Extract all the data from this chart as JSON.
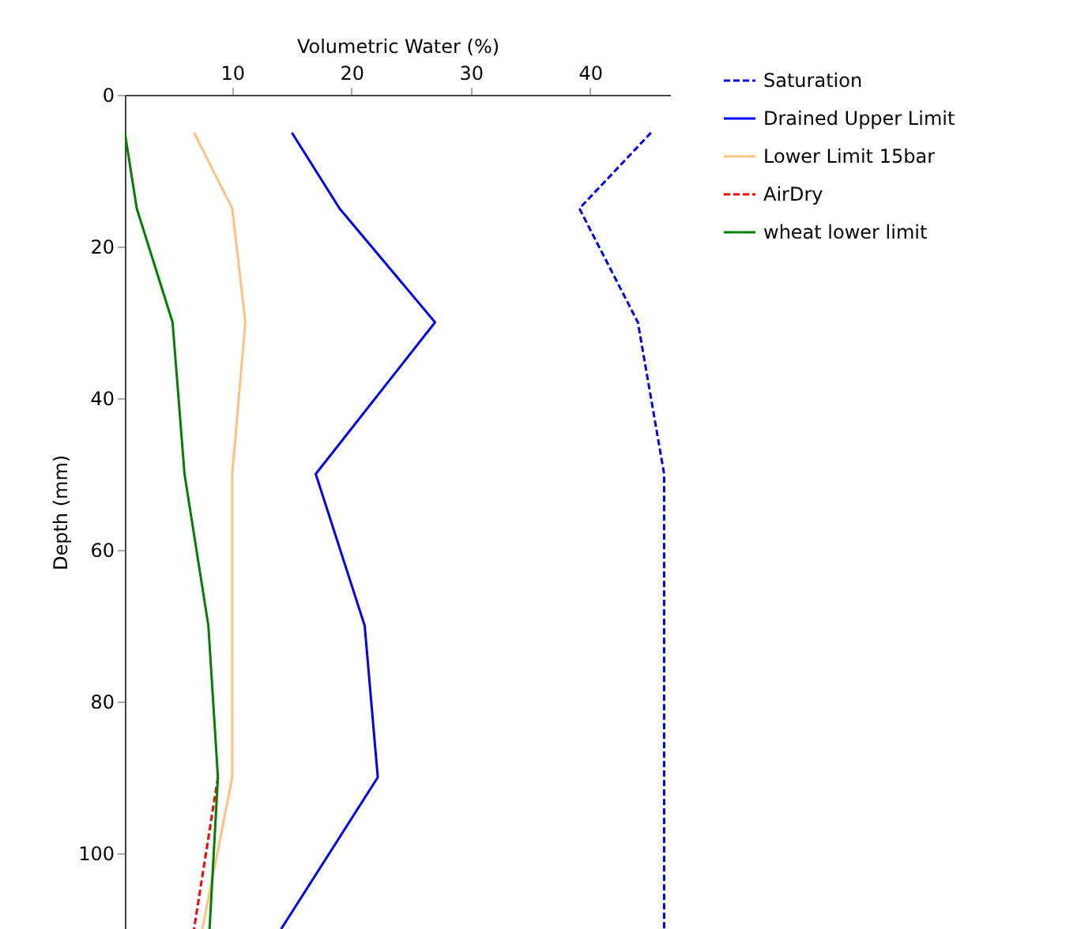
{
  "chart_data": {
    "type": "line",
    "orientation": "horizontal",
    "xlabel": "Volumetric Water (%)",
    "ylabel": "Depth (mm)",
    "x": [
      5,
      15,
      30,
      50,
      70,
      90,
      110
    ],
    "series": [
      {
        "name": "Saturation",
        "color": "#0000ff",
        "line_style": "dashed",
        "values": [
          45.1,
          39.1,
          44.0,
          46.2,
          46.2,
          46.2,
          46.2
        ]
      },
      {
        "name": "Drained Upper Limit",
        "color": "#0000ff",
        "line_style": "solid",
        "values": [
          15.0,
          19.0,
          27.0,
          17.0,
          21.1,
          22.2,
          14.1
        ]
      },
      {
        "name": "Lower Limit 15bar",
        "color": "#ffc080",
        "line_style": "solid",
        "values": [
          6.8,
          10.0,
          11.1,
          10.0,
          10.0,
          10.0,
          7.5
        ]
      },
      {
        "name": "AirDry",
        "color": "#ff0000",
        "line_style": "dashed",
        "values": [
          null,
          null,
          null,
          null,
          null,
          8.8,
          6.8
        ]
      },
      {
        "name": "wheat lower limit",
        "color": "#008000",
        "line_style": "solid",
        "values": [
          1.0,
          2.0,
          5.0,
          6.0,
          8.0,
          8.8,
          8.1
        ]
      }
    ],
    "xlim": [
      1,
      46.7
    ],
    "xticks": [
      10,
      20,
      30,
      40
    ],
    "ylim": [
      110,
      0
    ],
    "yticks": [
      0,
      20,
      40,
      60,
      80,
      100
    ],
    "grid": false,
    "legend": "top right",
    "marker": "none"
  }
}
